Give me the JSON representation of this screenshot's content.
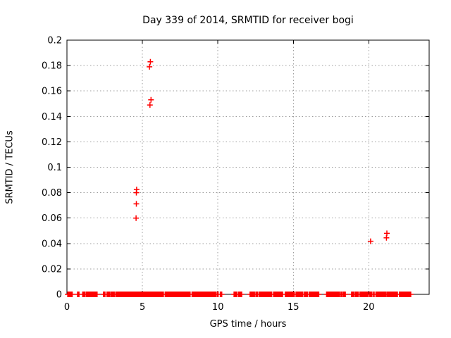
{
  "chart_data": {
    "type": "scatter",
    "title": "Day 339 of 2014, SRMTID for receiver bogi",
    "xlabel": "GPS time / hours",
    "ylabel": "SRMTID / TECUs",
    "xlim": [
      0,
      24
    ],
    "ylim": [
      0,
      0.2
    ],
    "xtick_values": [
      0,
      5,
      10,
      15,
      20
    ],
    "xtick_labels": [
      "0",
      "5",
      "10",
      "15",
      "20"
    ],
    "ytick_values": [
      0,
      0.02,
      0.04,
      0.06,
      0.08,
      0.1,
      0.12,
      0.14,
      0.16,
      0.18,
      0.2
    ],
    "ytick_labels": [
      "0",
      "0.02",
      "0.04",
      "0.06",
      "0.08",
      "0.1",
      "0.12",
      "0.14",
      "0.16",
      "0.18",
      "0.2"
    ],
    "grid": "dotted",
    "legend": "none",
    "marker": "plus",
    "marker_color": "#ff0000",
    "axis_color": "#000000",
    "grid_color": "#9c9c9c",
    "background_color": "#ffffff",
    "outlier_points": [
      {
        "x": 5.53,
        "y": 0.183
      },
      {
        "x": 5.47,
        "y": 0.179
      },
      {
        "x": 5.57,
        "y": 0.153
      },
      {
        "x": 5.5,
        "y": 0.149
      },
      {
        "x": 4.62,
        "y": 0.0825
      },
      {
        "x": 4.6,
        "y": 0.08
      },
      {
        "x": 4.6,
        "y": 0.0712
      },
      {
        "x": 4.58,
        "y": 0.06
      },
      {
        "x": 20.12,
        "y": 0.0418
      },
      {
        "x": 21.2,
        "y": 0.048
      },
      {
        "x": 21.17,
        "y": 0.0445
      }
    ],
    "baseline_y": 0,
    "baseline_point_spacing_hours": 0.05,
    "baseline_segments": [
      [
        0.05,
        0.35
      ],
      [
        0.7,
        0.8
      ],
      [
        1.04,
        1.22
      ],
      [
        1.28,
        1.4
      ],
      [
        1.45,
        2.02
      ],
      [
        2.42,
        2.54
      ],
      [
        2.65,
        2.88
      ],
      [
        2.93,
        3.04
      ],
      [
        3.09,
        3.17
      ],
      [
        3.23,
        3.69
      ],
      [
        3.74,
        6.42
      ],
      [
        6.51,
        8.18
      ],
      [
        8.29,
        8.6
      ],
      [
        8.65,
        8.93
      ],
      [
        8.96,
        9.4
      ],
      [
        9.43,
        9.9
      ],
      [
        9.97,
        10.06
      ],
      [
        10.16,
        10.3
      ],
      [
        11.07,
        11.3
      ],
      [
        11.38,
        11.58
      ],
      [
        12.13,
        12.44
      ],
      [
        12.52,
        12.63
      ],
      [
        12.72,
        12.83
      ],
      [
        12.88,
        13.38
      ],
      [
        13.42,
        13.61
      ],
      [
        13.69,
        14.32
      ],
      [
        14.47,
        15.1
      ],
      [
        15.18,
        15.65
      ],
      [
        15.73,
        15.96
      ],
      [
        16.04,
        16.73
      ],
      [
        17.2,
        17.3
      ],
      [
        17.35,
        17.93
      ],
      [
        17.97,
        18.08
      ],
      [
        18.16,
        18.25
      ],
      [
        18.3,
        18.47
      ],
      [
        18.86,
        19.02
      ],
      [
        19.1,
        19.33
      ],
      [
        19.41,
        20.0
      ],
      [
        20.06,
        20.22
      ],
      [
        20.31,
        20.39
      ],
      [
        20.47,
        21.12
      ],
      [
        21.2,
        21.9
      ],
      [
        22.03,
        22.81
      ]
    ]
  }
}
